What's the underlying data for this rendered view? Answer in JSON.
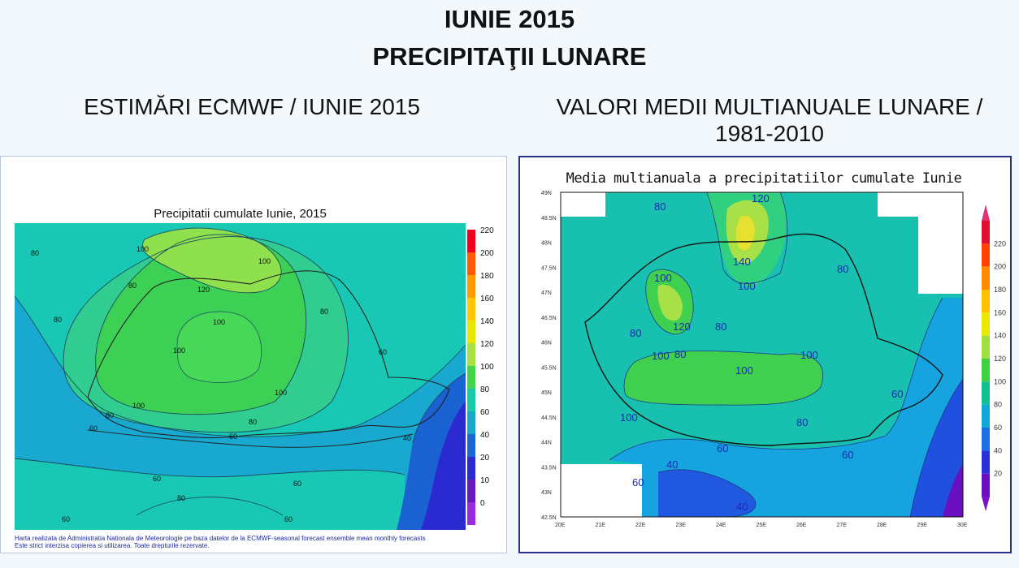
{
  "header": {
    "title_line1": "IUNIE 2015",
    "title_line2": "PRECIPITAŢII LUNARE"
  },
  "left_panel": {
    "subtitle": "ESTIMĂRI ECMWF / IUNIE 2015",
    "map_title": "Precipitatii cumulate Iunie, 2015",
    "legend_values": [
      "220",
      "200",
      "180",
      "160",
      "140",
      "120",
      "100",
      "80",
      "60",
      "40",
      "20",
      "10",
      "0"
    ],
    "legend_colors": [
      "#f0001a",
      "#ff5a00",
      "#ff9a00",
      "#ffc800",
      "#e6e600",
      "#a8e040",
      "#44d44c",
      "#18c8a8",
      "#18a8c8",
      "#1a68d2",
      "#2a2ad0",
      "#6a1ab8",
      "#9a2adc"
    ],
    "contour_labels": [
      {
        "text": "80",
        "id": "a"
      },
      {
        "text": "100",
        "id": "b"
      },
      {
        "text": "100",
        "id": "c"
      },
      {
        "text": "80",
        "id": "d"
      },
      {
        "text": "120",
        "id": "e"
      },
      {
        "text": "80",
        "id": "f"
      },
      {
        "text": "100",
        "id": "g"
      },
      {
        "text": "100",
        "id": "h"
      },
      {
        "text": "80",
        "id": "i"
      },
      {
        "text": "60",
        "id": "j"
      },
      {
        "text": "100",
        "id": "k"
      },
      {
        "text": "100",
        "id": "l"
      },
      {
        "text": "80",
        "id": "m"
      },
      {
        "text": "80",
        "id": "n"
      },
      {
        "text": "60",
        "id": "o"
      },
      {
        "text": "60",
        "id": "p"
      },
      {
        "text": "40",
        "id": "q"
      },
      {
        "text": "60",
        "id": "r"
      },
      {
        "text": "60",
        "id": "s"
      },
      {
        "text": "80",
        "id": "t"
      },
      {
        "text": "60",
        "id": "u"
      },
      {
        "text": "60",
        "id": "v"
      }
    ],
    "credit_line1": "Harta realizata de Administratia Nationala de Meteorologie pe baza datelor de la ECMWF-seasonal forecast ensemble mean monthly forecasts",
    "credit_line2": "Este strict interzisa copierea si utilizarea. Toate drepturile rezervate."
  },
  "right_panel": {
    "subtitle_line1": "VALORI MEDII MULTIANUALE LUNARE /",
    "subtitle_line2": "1981-2010",
    "map_title": "Media multianuala a precipitatiilor cumulate Iunie",
    "lat_ticks": [
      "49N",
      "48.5N",
      "48N",
      "47.5N",
      "47N",
      "46.5N",
      "46N",
      "45.5N",
      "45N",
      "44.5N",
      "44N",
      "43.5N",
      "43N",
      "42.5N"
    ],
    "lon_ticks": [
      "20E",
      "21E",
      "22E",
      "23E",
      "24E",
      "25E",
      "26E",
      "27E",
      "28E",
      "29E",
      "30E"
    ],
    "legend_values": [
      "220",
      "200",
      "180",
      "160",
      "140",
      "120",
      "100",
      "80",
      "60",
      "40",
      "20"
    ],
    "legend_colors": [
      "#e01030",
      "#ff4000",
      "#ff8c00",
      "#ffc000",
      "#e8e800",
      "#a0e040",
      "#40d040",
      "#10c090",
      "#10a8d8",
      "#1a70e0",
      "#2a30d8",
      "#6a10c0"
    ],
    "contour_labels": [
      {
        "text": "80",
        "id": "a"
      },
      {
        "text": "120",
        "id": "b"
      },
      {
        "text": "140",
        "id": "c"
      },
      {
        "text": "100",
        "id": "d"
      },
      {
        "text": "100",
        "id": "e"
      },
      {
        "text": "80",
        "id": "f"
      },
      {
        "text": "120",
        "id": "g"
      },
      {
        "text": "80",
        "id": "h"
      },
      {
        "text": "80",
        "id": "i"
      },
      {
        "text": "100",
        "id": "j"
      },
      {
        "text": "80",
        "id": "k"
      },
      {
        "text": "100",
        "id": "l"
      },
      {
        "text": "100",
        "id": "m"
      },
      {
        "text": "60",
        "id": "n"
      },
      {
        "text": "100",
        "id": "o"
      },
      {
        "text": "80",
        "id": "p"
      },
      {
        "text": "60",
        "id": "q"
      },
      {
        "text": "60",
        "id": "r"
      },
      {
        "text": "40",
        "id": "s"
      },
      {
        "text": "60",
        "id": "t"
      },
      {
        "text": "40",
        "id": "u"
      }
    ]
  }
}
